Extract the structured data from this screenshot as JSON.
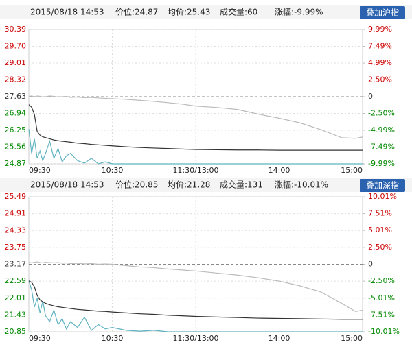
{
  "chart_data": [
    {
      "type": "line",
      "header": [
        "2015/08/18 14:53",
        "价位:24.87",
        "均价:25.43",
        "成交量:60",
        "涨幅:-9.99%"
      ],
      "button": "叠加沪指",
      "x": [
        0,
        2,
        4,
        6,
        8,
        10,
        12,
        15,
        18,
        21,
        24,
        27,
        30,
        35,
        40,
        45,
        50,
        55,
        60,
        70,
        80,
        90,
        100,
        110,
        120,
        135,
        150,
        165,
        180,
        195,
        210,
        225,
        235,
        240
      ],
      "xlim": [
        0,
        240
      ],
      "xticks": [
        {
          "value": 0,
          "label": "09:30"
        },
        {
          "value": 60,
          "label": "10:30"
        },
        {
          "value": 120,
          "label": "11:30/13:00"
        },
        {
          "value": 180,
          "label": "14:00"
        },
        {
          "value": 240,
          "label": "15:00"
        }
      ],
      "ylim": [
        24.87,
        30.39
      ],
      "yticks": [
        30.39,
        {
          "value": 29.7,
          "label": "29.70"
        },
        29.01,
        28.32,
        27.63,
        26.94,
        26.25,
        25.56,
        24.87
      ],
      "y2lim": [
        -9.99,
        9.99
      ],
      "y2ticks": [
        {
          "value": 9.99,
          "label": "9.99%"
        },
        {
          "value": 7.49,
          "label": "7.49%"
        },
        {
          "value": 4.99,
          "label": "4.99%"
        },
        {
          "value": 2.5,
          "label": "2.50%"
        },
        0,
        {
          "value": -2.5,
          "label": "-2.50%"
        },
        {
          "value": -4.99,
          "label": "-4.99%"
        },
        {
          "value": -7.49,
          "label": "-7.49%"
        },
        {
          "value": -9.99,
          "label": "-9.99%"
        }
      ],
      "up_color": "#cc0000",
      "down_color": "#008800",
      "grid": true,
      "series": [
        {
          "color": "#5fb3c0",
          "values": [
            26.3,
            25.3,
            25.9,
            25.1,
            25.4,
            25.0,
            25.3,
            25.8,
            25.1,
            25.5,
            24.95,
            25.2,
            25.3,
            25.0,
            24.9,
            25.1,
            24.87,
            24.95,
            24.87,
            24.87,
            24.87,
            24.87,
            24.87,
            24.87,
            24.87,
            24.87,
            24.87,
            24.87,
            24.87,
            24.87,
            24.87,
            24.87,
            24.87,
            24.87
          ]
        },
        {
          "color": "#333333",
          "values": [
            27.3,
            27.2,
            26.9,
            26.2,
            26.05,
            25.98,
            25.95,
            25.9,
            25.85,
            25.82,
            25.8,
            25.78,
            25.76,
            25.72,
            25.7,
            25.67,
            25.65,
            25.63,
            25.61,
            25.57,
            25.54,
            25.52,
            25.5,
            25.48,
            25.46,
            25.45,
            25.44,
            25.44,
            25.43,
            25.43,
            25.43,
            25.43,
            25.43,
            25.43
          ]
        },
        {
          "color": "#bbbbbb",
          "axis": "y2",
          "values": [
            0.05,
            0.1,
            0.0,
            0.1,
            0.05,
            -0.05,
            0.0,
            0.1,
            0.05,
            -0.05,
            0.0,
            0.05,
            -0.1,
            -0.05,
            -0.15,
            -0.1,
            -0.2,
            -0.25,
            -0.3,
            -0.4,
            -0.55,
            -0.7,
            -0.9,
            -1.1,
            -1.4,
            -1.6,
            -1.9,
            -2.6,
            -3.2,
            -3.9,
            -4.9,
            -6.1,
            -6.2,
            -6.0
          ]
        }
      ]
    },
    {
      "type": "line",
      "header": [
        "2015/08/18 14:53",
        "价位:20.85",
        "均价:21.28",
        "成交量:131",
        "涨幅:-10.01%"
      ],
      "button": "叠加深指",
      "x": [
        0,
        2,
        4,
        6,
        8,
        10,
        12,
        15,
        18,
        21,
        24,
        27,
        30,
        35,
        40,
        45,
        50,
        55,
        60,
        70,
        80,
        90,
        100,
        110,
        120,
        135,
        150,
        165,
        180,
        195,
        210,
        225,
        235,
        240
      ],
      "xlim": [
        0,
        240
      ],
      "xticks": [
        {
          "value": 0,
          "label": "09:30"
        },
        {
          "value": 60,
          "label": "10:30"
        },
        {
          "value": 120,
          "label": "11:30/13:00"
        },
        {
          "value": 180,
          "label": "14:00"
        },
        {
          "value": 240,
          "label": "15:00"
        }
      ],
      "ylim": [
        20.85,
        25.49
      ],
      "yticks": [
        25.49,
        24.91,
        24.33,
        23.75,
        23.17,
        22.59,
        22.01,
        21.43,
        20.85
      ],
      "y2lim": [
        -10.01,
        10.01
      ],
      "y2ticks": [
        {
          "value": 10.01,
          "label": "10.01%"
        },
        {
          "value": 7.51,
          "label": "7.51%"
        },
        {
          "value": 5.01,
          "label": "5.01%"
        },
        {
          "value": 2.5,
          "label": "2.50%"
        },
        0,
        {
          "value": -2.5,
          "label": "-2.50%"
        },
        {
          "value": -5.01,
          "label": "-5.01%"
        },
        {
          "value": -7.51,
          "label": "-7.51%"
        },
        {
          "value": -10.01,
          "label": "-10.01%"
        }
      ],
      "up_color": "#cc0000",
      "down_color": "#008800",
      "grid": true,
      "series": [
        {
          "color": "#5fb3c0",
          "values": [
            22.6,
            22.3,
            21.7,
            22.0,
            21.5,
            21.9,
            21.4,
            21.2,
            21.6,
            21.1,
            21.3,
            20.95,
            21.2,
            21.0,
            21.35,
            20.9,
            21.1,
            20.95,
            21.0,
            20.9,
            20.87,
            20.9,
            20.85,
            20.85,
            20.85,
            20.85,
            20.85,
            20.85,
            20.85,
            20.85,
            20.85,
            20.85,
            20.85,
            20.85
          ]
        },
        {
          "color": "#333333",
          "values": [
            22.6,
            22.55,
            22.4,
            22.1,
            21.95,
            21.88,
            21.83,
            21.78,
            21.74,
            21.71,
            21.69,
            21.67,
            21.65,
            21.62,
            21.6,
            21.58,
            21.56,
            21.55,
            21.53,
            21.5,
            21.47,
            21.45,
            21.42,
            21.4,
            21.38,
            21.36,
            21.34,
            21.32,
            21.31,
            21.3,
            21.29,
            21.28,
            21.28,
            21.28
          ]
        },
        {
          "color": "#bbbbbb",
          "axis": "y2",
          "values": [
            0.3,
            0.2,
            0.3,
            0.35,
            0.25,
            0.2,
            0.3,
            0.25,
            0.2,
            0.25,
            0.15,
            0.2,
            0.1,
            0.15,
            0.05,
            0.1,
            0.0,
            0.05,
            0.0,
            -0.2,
            -0.4,
            -0.5,
            -0.7,
            -0.85,
            -1.0,
            -1.3,
            -1.6,
            -2.0,
            -2.5,
            -3.2,
            -4.1,
            -5.8,
            -7.0,
            -6.8
          ]
        }
      ]
    }
  ]
}
